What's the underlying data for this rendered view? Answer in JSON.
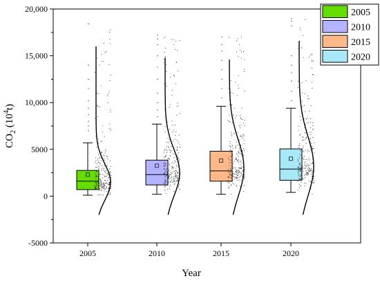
{
  "chart_data": {
    "type": "box",
    "title": "",
    "xlabel": "Year",
    "ylabel": {
      "prefix": "CO",
      "sub": "2",
      "mid": " (10",
      "sup": "4",
      "suffix": "t)"
    },
    "ylim": [
      -5000,
      20000
    ],
    "yticks": [
      -5000,
      0,
      5000,
      10000,
      15000,
      20000
    ],
    "ytick_labels": [
      "-5000",
      "0",
      "5000",
      "10,000",
      "15,000",
      "20,000"
    ],
    "categories": [
      "2005",
      "2010",
      "2015",
      "2020"
    ],
    "legend_position": "top-right",
    "series": [
      {
        "name": "2005",
        "color": "#66dd00",
        "min": 100,
        "q1": 700,
        "median": 1600,
        "q3": 2750,
        "max": 5700,
        "mean": 2300,
        "outliers": [
          7000,
          7500,
          8000,
          8700,
          9400,
          10200,
          11500,
          12500,
          14000,
          18400
        ],
        "density_peak": 1500
      },
      {
        "name": "2010",
        "color": "#b3b3ff",
        "min": 200,
        "q1": 1200,
        "median": 2300,
        "q3": 3850,
        "max": 7700,
        "mean": 3250,
        "outliers": [
          8500,
          9200,
          10000,
          11000,
          12500,
          13800,
          15000,
          16200,
          16800,
          17200
        ],
        "density_peak": 2500
      },
      {
        "name": "2015",
        "color": "#ffb888",
        "min": 200,
        "q1": 1600,
        "median": 2700,
        "q3": 4800,
        "max": 9600,
        "mean": 3800,
        "outliers": [
          10500,
          11500,
          12500,
          13500,
          14500,
          15500,
          16200,
          17000
        ],
        "density_peak": 3000
      },
      {
        "name": "2020",
        "color": "#a8e8f8",
        "min": 400,
        "q1": 1700,
        "median": 2900,
        "q3": 5050,
        "max": 9400,
        "mean": 4000,
        "outliers": [
          10200,
          11200,
          12300,
          13200,
          14000,
          15000,
          18200,
          18700,
          19000
        ],
        "density_peak": 3200
      }
    ]
  }
}
